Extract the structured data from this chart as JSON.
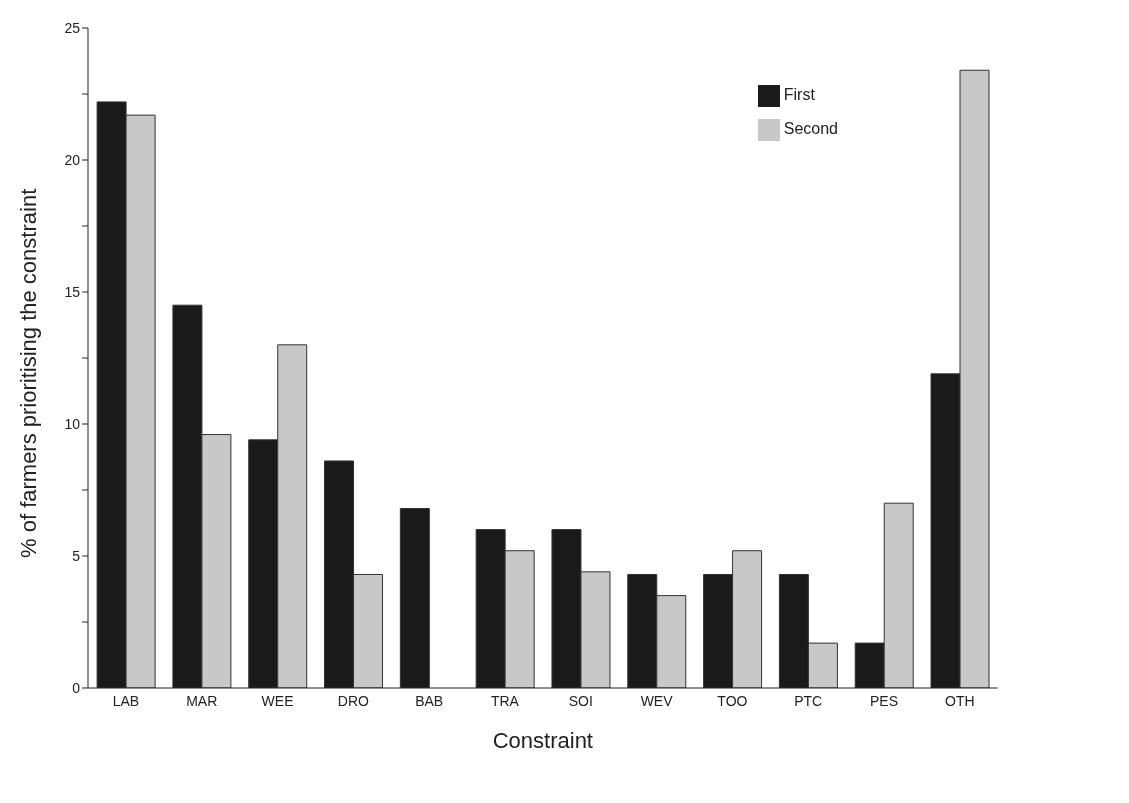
{
  "chart_data": {
    "type": "bar",
    "xlabel": "Constraint",
    "ylabel": "% of farmers prioritising the constraint",
    "categories": [
      "LAB",
      "MAR",
      "WEE",
      "DRO",
      "BAB",
      "TRA",
      "SOI",
      "WEV",
      "TOO",
      "PTC",
      "PES",
      "OTH"
    ],
    "series": [
      {
        "name": "First",
        "color": "#1a1a1a",
        "values": [
          22.2,
          14.5,
          9.4,
          8.6,
          6.8,
          6.0,
          6.0,
          4.3,
          4.3,
          4.3,
          1.7,
          11.9
        ]
      },
      {
        "name": "Second",
        "color": "#c8c8c8",
        "values": [
          21.7,
          9.6,
          13.0,
          4.3,
          0,
          5.2,
          4.4,
          3.5,
          5.2,
          1.7,
          7.0,
          23.4
        ]
      }
    ],
    "ylim": [
      0,
      25
    ],
    "yticks": [
      0,
      {
        "value": 2.5,
        "label": null
      },
      5,
      {
        "value": 7.5,
        "label": null
      },
      10,
      {
        "value": 12.5,
        "label": null
      },
      15,
      {
        "value": 17.5,
        "label": null
      },
      20,
      {
        "value": 22.5,
        "label": null
      },
      25
    ],
    "grid": false,
    "legend": "top right"
  }
}
